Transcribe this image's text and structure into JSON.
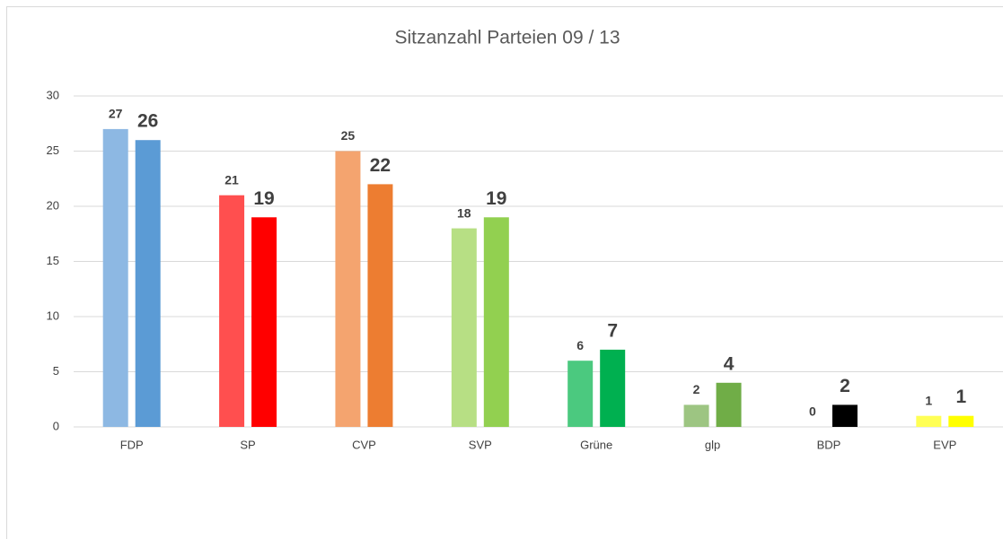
{
  "chart_data": {
    "type": "bar",
    "title": "Sitzanzahl Parteien 09 / 13",
    "categories": [
      "FDP",
      "SP",
      "CVP",
      "SVP",
      "Grüne",
      "glp",
      "BDP",
      "EVP"
    ],
    "series": [
      {
        "colors": [
          "#8db8e3",
          "#ff4f4f",
          "#f4a46f",
          "#b7df84",
          "#4bc97f",
          "#9dc582",
          "#7f7f7f",
          "#ffff55"
        ],
        "values": [
          27,
          21,
          25,
          18,
          6,
          2,
          0,
          1
        ]
      },
      {
        "colors": [
          "#5b9bd5",
          "#ff0000",
          "#ed7d31",
          "#92d050",
          "#00b050",
          "#70ad47",
          "#000000",
          "#ffff00"
        ],
        "values": [
          26,
          19,
          22,
          19,
          7,
          4,
          2,
          1
        ]
      }
    ],
    "ylim": [
      0,
      30
    ],
    "yticks": [
      0,
      5,
      10,
      15,
      20,
      25,
      30
    ],
    "grid": true
  }
}
